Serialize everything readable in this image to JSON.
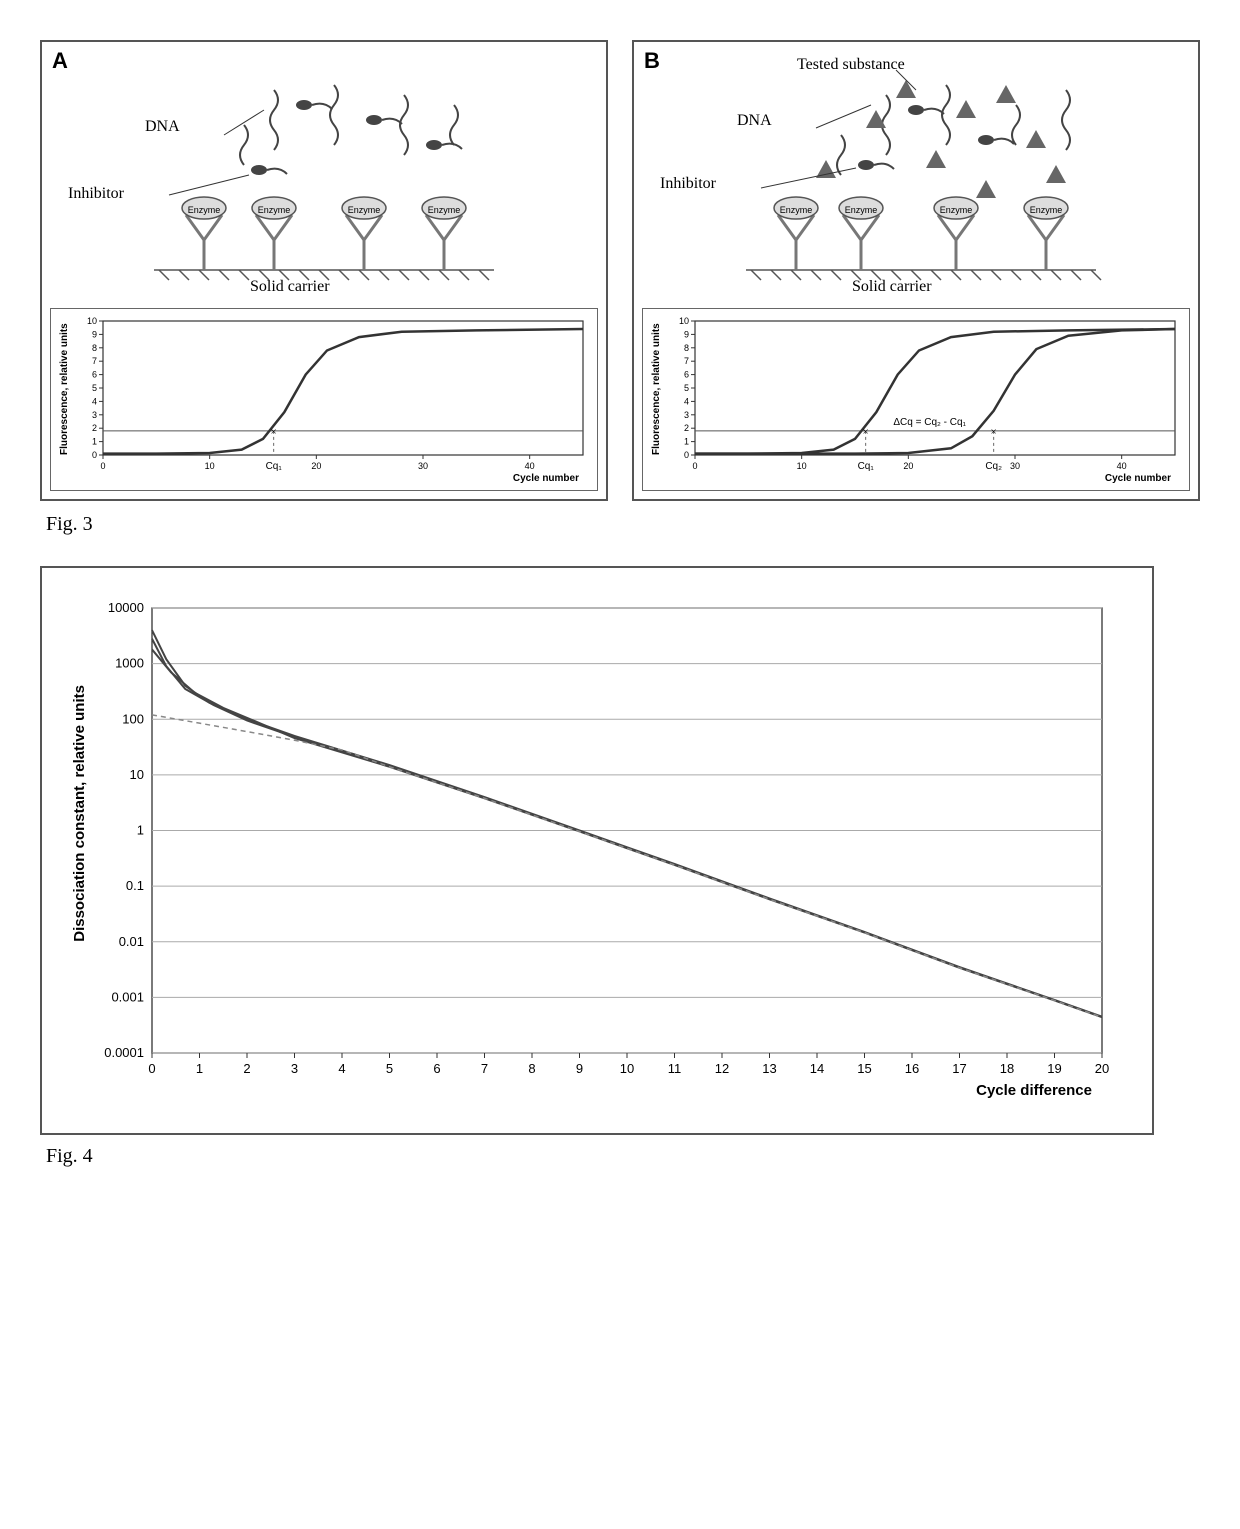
{
  "figure3": {
    "caption": "Fig. 3",
    "panelA": {
      "letter": "A",
      "schematic_labels": {
        "dna": "DNA",
        "inhibitor": "Inhibitor",
        "enzyme": "Enzyme",
        "carrier": "Solid carrier"
      },
      "chart": {
        "type": "line",
        "ylabel": "Fluorescence, relative units",
        "xlabel": "Cycle number",
        "ylim": [
          0,
          10
        ],
        "yticks": [
          0,
          1,
          2,
          3,
          4,
          5,
          6,
          7,
          8,
          9,
          10
        ],
        "xlim": [
          0,
          45
        ],
        "xticks": [
          0,
          10,
          20,
          30,
          40
        ],
        "xticks_special": {
          "cq1_tick_label": "Cq₁",
          "cq1_x": 16
        },
        "threshold_y": 1.8,
        "series": [
          {
            "color": "#333333",
            "width": 2.5,
            "points": [
              [
                0,
                0.1
              ],
              [
                5,
                0.1
              ],
              [
                10,
                0.15
              ],
              [
                13,
                0.4
              ],
              [
                15,
                1.2
              ],
              [
                17,
                3.2
              ],
              [
                19,
                6.0
              ],
              [
                21,
                7.8
              ],
              [
                24,
                8.8
              ],
              [
                28,
                9.2
              ],
              [
                35,
                9.3
              ],
              [
                45,
                9.4
              ]
            ]
          }
        ],
        "background_color": "#ffffff",
        "axis_color": "#333333"
      }
    },
    "panelB": {
      "letter": "B",
      "schematic_labels": {
        "tested": "Tested substance",
        "dna": "DNA",
        "inhibitor": "Inhibitor",
        "enzyme": "Enzyme",
        "carrier": "Solid carrier"
      },
      "chart": {
        "type": "line",
        "ylabel": "Fluorescence, relative units",
        "xlabel": "Cycle number",
        "ylim": [
          0,
          10
        ],
        "yticks": [
          0,
          1,
          2,
          3,
          4,
          5,
          6,
          7,
          8,
          9,
          10
        ],
        "xlim": [
          0,
          45
        ],
        "xticks": [
          0,
          10,
          20,
          30,
          40
        ],
        "xticks_special": {
          "cq1_tick_label": "Cq₁",
          "cq1_x": 16,
          "cq2_tick_label": "Cq₂",
          "cq2_x": 28,
          "delta_label": "ΔCq = Cq₂ - Cq₁"
        },
        "threshold_y": 1.8,
        "series": [
          {
            "color": "#333333",
            "width": 2.5,
            "points": [
              [
                0,
                0.1
              ],
              [
                5,
                0.1
              ],
              [
                10,
                0.15
              ],
              [
                13,
                0.4
              ],
              [
                15,
                1.2
              ],
              [
                17,
                3.2
              ],
              [
                19,
                6.0
              ],
              [
                21,
                7.8
              ],
              [
                24,
                8.8
              ],
              [
                28,
                9.2
              ],
              [
                35,
                9.3
              ],
              [
                45,
                9.4
              ]
            ]
          },
          {
            "color": "#333333",
            "width": 2.5,
            "points": [
              [
                0,
                0.1
              ],
              [
                15,
                0.1
              ],
              [
                20,
                0.15
              ],
              [
                24,
                0.5
              ],
              [
                26,
                1.4
              ],
              [
                28,
                3.3
              ],
              [
                30,
                6.0
              ],
              [
                32,
                7.9
              ],
              [
                35,
                8.9
              ],
              [
                40,
                9.3
              ],
              [
                45,
                9.4
              ]
            ]
          }
        ],
        "background_color": "#ffffff",
        "axis_color": "#333333"
      }
    }
  },
  "figure4": {
    "caption": "Fig. 4",
    "chart": {
      "type": "line",
      "ylabel": "Dissociation constant, relative units",
      "xlabel": "Cycle difference",
      "xlim": [
        0,
        20
      ],
      "xticks": [
        0,
        1,
        2,
        3,
        4,
        5,
        6,
        7,
        8,
        9,
        10,
        11,
        12,
        13,
        14,
        15,
        16,
        17,
        18,
        19,
        20
      ],
      "yscale": "log",
      "ylim": [
        0.0001,
        10000
      ],
      "ytick_labels": [
        "0.0001",
        "0.001",
        "0.01",
        "0.1",
        "1",
        "10",
        "100",
        "1000",
        "10000"
      ],
      "ytick_values": [
        0.0001,
        0.001,
        0.01,
        0.1,
        1,
        10,
        100,
        1000,
        10000
      ],
      "grid_color": "#aaaaaa",
      "background_color": "#ffffff",
      "axis_color": "#333333",
      "series": [
        {
          "color": "#444444",
          "width": 2,
          "points": [
            [
              0,
              4000
            ],
            [
              0.3,
              1200
            ],
            [
              0.7,
              400
            ],
            [
              1.2,
              200
            ],
            [
              2,
              100
            ],
            [
              3,
              50
            ],
            [
              5,
              15
            ],
            [
              7,
              4
            ],
            [
              9,
              1
            ],
            [
              11,
              0.25
            ],
            [
              13,
              0.06
            ],
            [
              15,
              0.015
            ],
            [
              17,
              0.0035
            ],
            [
              19,
              0.0009
            ],
            [
              20,
              0.00045
            ]
          ]
        },
        {
          "color": "#444444",
          "width": 2,
          "points": [
            [
              0,
              2800
            ],
            [
              0.3,
              900
            ],
            [
              0.7,
              350
            ],
            [
              1.3,
              180
            ],
            [
              2,
              95
            ],
            [
              3,
              48
            ],
            [
              5,
              14.5
            ],
            [
              7,
              3.9
            ],
            [
              9,
              0.98
            ],
            [
              11,
              0.245
            ],
            [
              13,
              0.059
            ],
            [
              15,
              0.0148
            ],
            [
              17,
              0.00345
            ],
            [
              19,
              0.00089
            ],
            [
              20,
              0.000445
            ]
          ]
        },
        {
          "color": "#444444",
          "width": 2,
          "points": [
            [
              0,
              1800
            ],
            [
              0.4,
              700
            ],
            [
              0.9,
              300
            ],
            [
              1.5,
              160
            ],
            [
              2.2,
              90
            ],
            [
              3,
              46
            ],
            [
              5,
              14
            ],
            [
              7,
              3.8
            ],
            [
              9,
              0.96
            ],
            [
              11,
              0.24
            ],
            [
              13,
              0.058
            ],
            [
              15,
              0.0146
            ],
            [
              17,
              0.0034
            ],
            [
              19,
              0.00088
            ],
            [
              20,
              0.00044
            ]
          ]
        },
        {
          "color": "#888888",
          "width": 1.5,
          "dash": "5,4",
          "points": [
            [
              0,
              120
            ],
            [
              1,
              85
            ],
            [
              2,
              60
            ],
            [
              3,
              42
            ],
            [
              4,
              28
            ],
            [
              5,
              14
            ],
            [
              7,
              3.8
            ],
            [
              9,
              0.96
            ],
            [
              11,
              0.24
            ],
            [
              13,
              0.058
            ],
            [
              15,
              0.0146
            ],
            [
              17,
              0.0034
            ],
            [
              19,
              0.00088
            ],
            [
              20,
              0.00044
            ]
          ]
        }
      ]
    }
  }
}
